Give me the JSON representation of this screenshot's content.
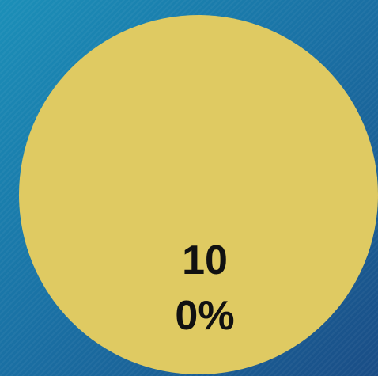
{
  "chart_data": {
    "type": "pie",
    "values": [
      100
    ],
    "value_labels": [
      "100%"
    ],
    "colors": [
      "#dfca62"
    ]
  }
}
